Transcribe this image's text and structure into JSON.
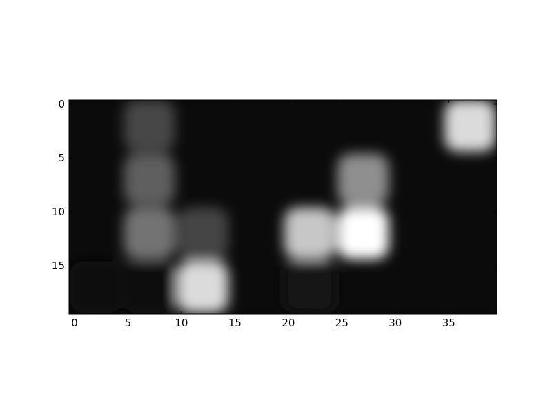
{
  "chart_data": {
    "type": "heatmap",
    "colormap": "gray",
    "interpolation": "smooth",
    "grid": false,
    "x": {
      "lim": [
        0,
        39.5
      ],
      "ticks": [
        0,
        5,
        10,
        15,
        20,
        25,
        30,
        35
      ],
      "tick_labels": [
        "0",
        "5",
        "10",
        "15",
        "20",
        "25",
        "30",
        "35"
      ]
    },
    "y": {
      "lim": [
        0,
        19.5
      ],
      "ticks": [
        0,
        5,
        10,
        15
      ],
      "tick_labels": [
        "0",
        "5",
        "10",
        "15"
      ],
      "inverted": true
    },
    "value_range": [
      0,
      1
    ],
    "background_value": 0.04,
    "blobs": [
      {
        "x": 7,
        "y": 2,
        "value": 0.28
      },
      {
        "x": 7,
        "y": 7,
        "value": 0.37
      },
      {
        "x": 7,
        "y": 12,
        "value": 0.45
      },
      {
        "x": 12,
        "y": 12,
        "value": 0.27
      },
      {
        "x": 12,
        "y": 17,
        "value": 0.86
      },
      {
        "x": 22,
        "y": 12,
        "value": 0.78
      },
      {
        "x": 27,
        "y": 7,
        "value": 0.56
      },
      {
        "x": 27,
        "y": 12,
        "value": 1.0
      },
      {
        "x": 37,
        "y": 2,
        "value": 0.86
      },
      {
        "x": 22,
        "y": 17,
        "value": 0.07
      },
      {
        "x": 7,
        "y": 17,
        "value": 0.06
      },
      {
        "x": 2,
        "y": 17,
        "value": 0.05
      }
    ]
  }
}
